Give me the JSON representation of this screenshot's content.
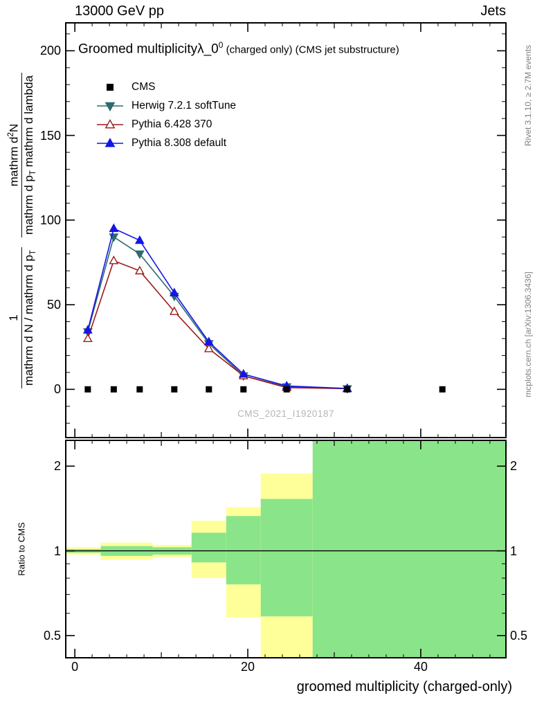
{
  "header": {
    "left": "13000 GeV pp",
    "right": "Jets"
  },
  "title": {
    "main": "Groomed multiplicity",
    "lambda": "λ_0",
    "sup": "0",
    "suffix": " (charged only) (CMS jet substructure)"
  },
  "watermark": "CMS_2021_I1920187",
  "side_notes": {
    "top_right": "Rivet 3.1.10, ≥ 2.7M events",
    "bottom_right": "mcplots.cern.ch [arXiv:1306.3436]"
  },
  "y_axis_label": {
    "f1_num": "1",
    "f1_den_a": "mathrm d N / mathrm d p",
    "f1_den_sub": "T",
    "f2_num_a": "mathrm d",
    "f2_num_sup": "2",
    "f2_num_b": "N",
    "f2_den_a": "mathrm d p",
    "f2_den_sub": "T",
    "f2_den_b": " mathrm d lambda"
  },
  "legend": {
    "items": [
      {
        "label": "CMS",
        "marker": "square",
        "color": "#000000",
        "filled": true,
        "line": false
      },
      {
        "label": "Herwig 7.2.1 softTune",
        "marker": "triangle-down",
        "color": "#2e6b6b",
        "filled": true,
        "line": true
      },
      {
        "label": "Pythia 6.428 370",
        "marker": "triangle-up",
        "color": "#9e1a1a",
        "filled": false,
        "line": true
      },
      {
        "label": "Pythia 8.308 default",
        "marker": "triangle-up",
        "color": "#1515e6",
        "filled": true,
        "line": true
      }
    ]
  },
  "chart_data": {
    "type": "line",
    "title": "Groomed multiplicity λ_0^0 (charged only) (CMS jet substructure)",
    "xlabel": "groomed multiplicity (charged-only)",
    "ylabel": "1/(mathrm d N/mathrm d p_T) · mathrm d²N/(mathrm d p_T mathrm d lambda)",
    "xlim": [
      -1.05,
      49.85
    ],
    "ylim": [
      -28.5,
      216.5
    ],
    "grid": false,
    "legend_position": "top-left",
    "x_ticks": {
      "major": [
        0,
        20,
        40
      ],
      "medium": [
        10,
        30
      ],
      "minor_step": 2,
      "minor_range": [
        0,
        48
      ]
    },
    "y_ticks": {
      "major": [
        0,
        50,
        100,
        150,
        200
      ],
      "minor_step": 10,
      "minor_range": [
        -20,
        210
      ]
    },
    "cms": {
      "name": "CMS",
      "marker": "square",
      "color": "#000000",
      "x": [
        1.5,
        4.5,
        7.5,
        11.5,
        15.5,
        19.5,
        24.5,
        31.5,
        42.5
      ],
      "y": [
        0,
        0,
        0,
        0,
        0,
        0,
        0,
        0,
        0
      ]
    },
    "series": [
      {
        "name": "Herwig 7.2.1 softTune",
        "color": "#2e6b6b",
        "marker": "triangle-down",
        "filled": true,
        "x": [
          1.5,
          4.5,
          7.5,
          11.5,
          15.5,
          19.5,
          24.5,
          31.5
        ],
        "y": [
          34,
          90,
          80,
          55,
          27,
          8,
          1.5,
          0.4
        ]
      },
      {
        "name": "Pythia 6.428 370",
        "color": "#9e1a1a",
        "marker": "triangle-up",
        "filled": false,
        "x": [
          1.5,
          4.5,
          7.5,
          11.5,
          15.5,
          19.5,
          24.5,
          31.5
        ],
        "y": [
          30,
          76,
          70,
          46,
          24,
          8,
          1,
          0.4
        ]
      },
      {
        "name": "Pythia 8.308 default",
        "color": "#1515e6",
        "marker": "triangle-up",
        "filled": true,
        "x": [
          1.5,
          4.5,
          7.5,
          11.5,
          15.5,
          19.5,
          24.5,
          31.5
        ],
        "y": [
          35,
          95,
          88,
          57,
          28,
          9,
          2,
          0.5
        ]
      }
    ],
    "ratio": {
      "label": "Ratio to CMS",
      "ylim": [
        0.417,
        2.47
      ],
      "scale": "log",
      "yticks_major": [
        0.5,
        1,
        2
      ],
      "yticks_minor": [
        0.6,
        0.7,
        0.8,
        0.9
      ],
      "unity_line": 1,
      "band_colors": {
        "outer": "#ffff99",
        "inner": "#8ae58a"
      },
      "bands": [
        {
          "x": [
            -1.05,
            3
          ],
          "outer": [
            0.97,
            1.03
          ],
          "inner": [
            0.985,
            1.015
          ]
        },
        {
          "x": [
            3,
            9
          ],
          "outer": [
            0.93,
            1.07
          ],
          "inner": [
            0.96,
            1.04
          ]
        },
        {
          "x": [
            9,
            13.5
          ],
          "outer": [
            0.95,
            1.05
          ],
          "inner": [
            0.97,
            1.03
          ]
        },
        {
          "x": [
            13.5,
            17.5
          ],
          "outer": [
            0.8,
            1.28
          ],
          "inner": [
            0.91,
            1.16
          ]
        },
        {
          "x": [
            17.5,
            21.5
          ],
          "outer": [
            0.58,
            1.43
          ],
          "inner": [
            0.76,
            1.33
          ]
        },
        {
          "x": [
            21.5,
            27.5
          ],
          "outer": [
            0.417,
            1.88
          ],
          "inner": [
            0.585,
            1.53
          ]
        },
        {
          "x": [
            27.5,
            49.85
          ],
          "outer": [
            0.417,
            2.47
          ],
          "inner": [
            0.417,
            2.47
          ]
        }
      ]
    }
  }
}
